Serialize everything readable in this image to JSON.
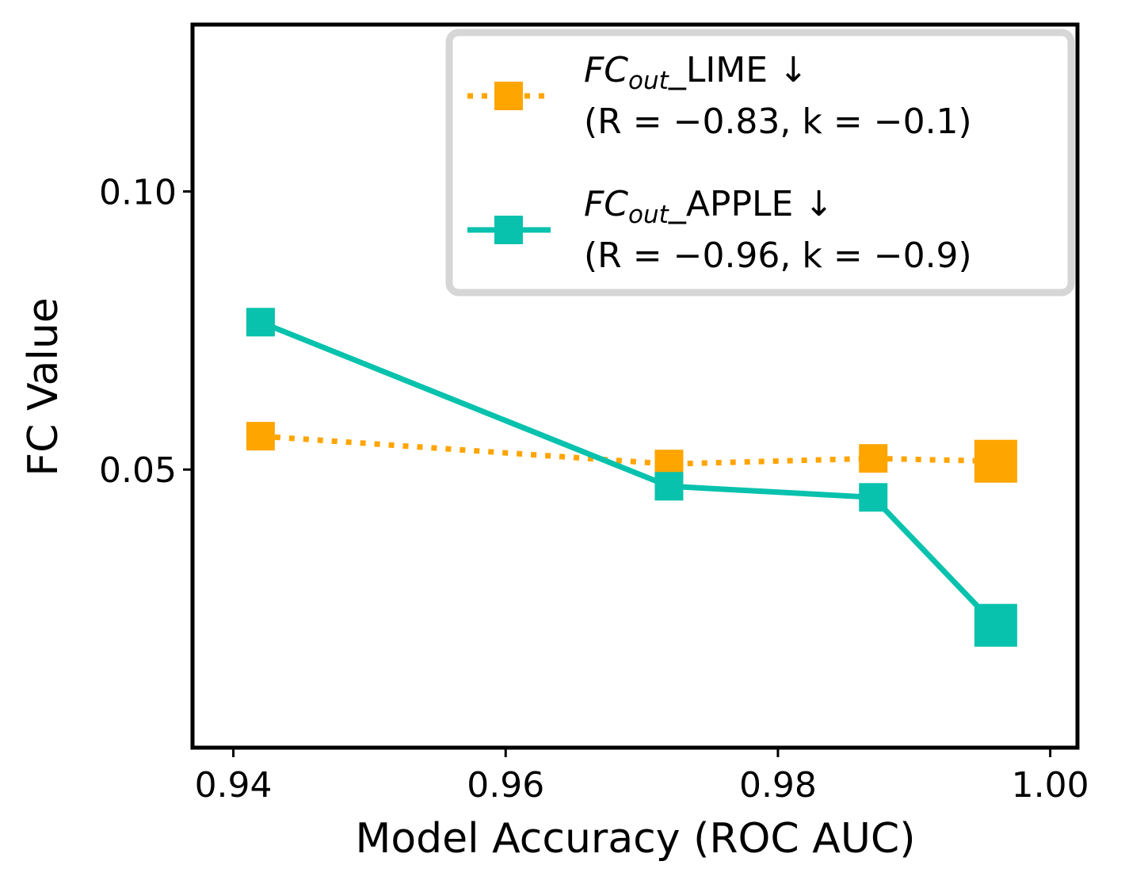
{
  "chart_data": {
    "type": "line",
    "xlabel": "Model Accuracy (ROC AUC)",
    "ylabel": "FC Value",
    "xlim": [
      0.937,
      1.002
    ],
    "ylim": [
      0.0,
      0.13
    ],
    "xticks": [
      "0.94",
      "0.96",
      "0.98",
      "1.00"
    ],
    "yticks": [
      "0.05",
      "0.10"
    ],
    "grid": false,
    "legend_position": "top-right",
    "series": [
      {
        "name": "FC_out_LIME ↓ (R = −0.83, k = −0.1)",
        "legend_sub": "out",
        "legend_after_sub": "_LIME ↓",
        "legend_line2": "(R = −0.83, k = −0.1)",
        "color": "#FFA500",
        "style": "dotted",
        "marker": "square",
        "x": [
          0.942,
          0.972,
          0.987,
          0.996
        ],
        "y": [
          0.056,
          0.051,
          0.052,
          0.0515
        ],
        "marker_scale": [
          1,
          1,
          1,
          1.5
        ]
      },
      {
        "name": "FC_out_APPLE ↓ (R = −0.96, k = −0.9)",
        "legend_sub": "out",
        "legend_after_sub": "_APPLE ↓",
        "legend_line2": "(R = −0.96, k = −0.9)",
        "color": "#08C2AD",
        "style": "solid",
        "marker": "square",
        "x": [
          0.942,
          0.972,
          0.987,
          0.996
        ],
        "y": [
          0.0765,
          0.047,
          0.045,
          0.022
        ],
        "marker_scale": [
          1,
          1,
          1,
          1.5
        ]
      }
    ]
  }
}
